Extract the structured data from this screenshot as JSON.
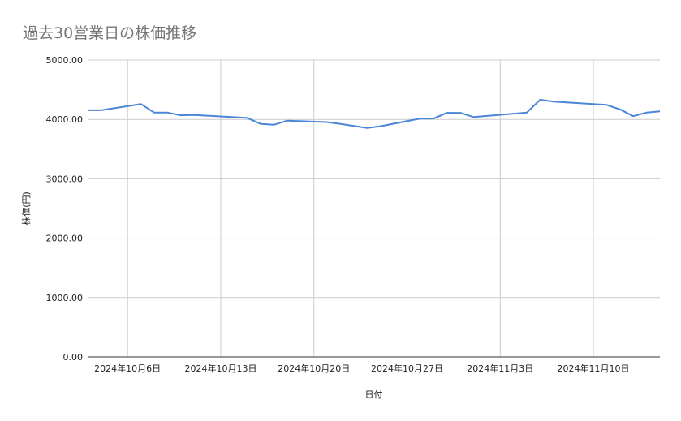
{
  "chart_data": {
    "type": "line",
    "title": "過去30営業日の株価推移",
    "xlabel": "日付",
    "ylabel": "株価(円)",
    "ylim": [
      0,
      5000
    ],
    "yticks": [
      0,
      1000,
      2000,
      3000,
      4000,
      5000
    ],
    "ytick_labels": [
      "0.00",
      "1000.00",
      "2000.00",
      "3000.00",
      "4000.00",
      "5000.00"
    ],
    "xlim": [
      "2024-10-03",
      "2024-11-15"
    ],
    "xticks": [
      "2024-10-06",
      "2024-10-13",
      "2024-10-20",
      "2024-10-27",
      "2024-11-03",
      "2024-11-10"
    ],
    "xtick_labels": [
      "2024年10月6日",
      "2024年10月13日",
      "2024年10月20日",
      "2024年10月27日",
      "2024年11月3日",
      "2024年11月10日"
    ],
    "grid": true,
    "line_color": "#4a86d8",
    "x": [
      "2024-10-03",
      "2024-10-04",
      "2024-10-07",
      "2024-10-08",
      "2024-10-09",
      "2024-10-10",
      "2024-10-11",
      "2024-10-15",
      "2024-10-16",
      "2024-10-17",
      "2024-10-18",
      "2024-10-21",
      "2024-10-22",
      "2024-10-23",
      "2024-10-24",
      "2024-10-25",
      "2024-10-28",
      "2024-10-29",
      "2024-10-30",
      "2024-10-31",
      "2024-11-01",
      "2024-11-05",
      "2024-11-06",
      "2024-11-07",
      "2024-11-08",
      "2024-11-11",
      "2024-11-12",
      "2024-11-13",
      "2024-11-14",
      "2024-11-15"
    ],
    "values": [
      4155,
      4155,
      4260,
      4115,
      4115,
      4070,
      4075,
      4025,
      3925,
      3910,
      3980,
      3955,
      3925,
      3890,
      3855,
      3885,
      4015,
      4015,
      4110,
      4110,
      4040,
      4115,
      4330,
      4300,
      4285,
      4245,
      4170,
      4055,
      4115,
      4135
    ]
  }
}
